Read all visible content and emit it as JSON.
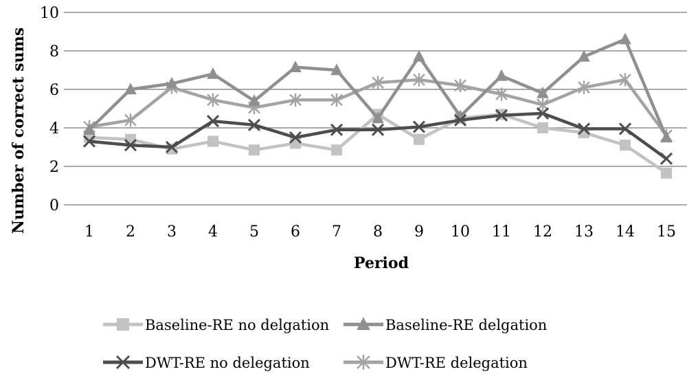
{
  "chart_data": {
    "type": "line",
    "title": "",
    "xlabel": "Period",
    "ylabel": "Number of correct sums",
    "x": [
      1,
      2,
      3,
      4,
      5,
      6,
      7,
      8,
      9,
      10,
      11,
      12,
      13,
      14,
      15
    ],
    "ylim": [
      0,
      10
    ],
    "yticks": [
      0,
      2,
      4,
      6,
      8,
      10
    ],
    "grid": true,
    "legend_position": "bottom",
    "series": [
      {
        "name": "Baseline-RE no delgation",
        "marker": "square",
        "color": "#c2c2c2",
        "values": [
          3.5,
          3.4,
          2.9,
          3.3,
          2.85,
          3.2,
          2.85,
          4.7,
          3.4,
          4.5,
          4.7,
          4.0,
          3.75,
          3.1,
          1.65
        ]
      },
      {
        "name": "Baseline-RE delgation",
        "marker": "triangle",
        "color": "#8f8f8f",
        "values": [
          3.9,
          6.0,
          6.3,
          6.8,
          5.4,
          7.15,
          7.0,
          4.5,
          7.7,
          4.6,
          6.7,
          5.8,
          7.7,
          8.6,
          3.5
        ]
      },
      {
        "name": "DWT-RE no delegation",
        "marker": "x",
        "color": "#4d4d4d",
        "values": [
          3.3,
          3.1,
          3.0,
          4.35,
          4.15,
          3.5,
          3.9,
          3.9,
          4.05,
          4.4,
          4.65,
          4.75,
          3.95,
          3.95,
          2.4
        ]
      },
      {
        "name": "DWT-RE delegation",
        "marker": "asterisk",
        "color": "#a3a3a3",
        "values": [
          4.05,
          4.4,
          6.1,
          5.45,
          5.05,
          5.45,
          5.45,
          6.35,
          6.5,
          6.2,
          5.75,
          5.2,
          6.1,
          6.5,
          3.6
        ]
      }
    ]
  }
}
